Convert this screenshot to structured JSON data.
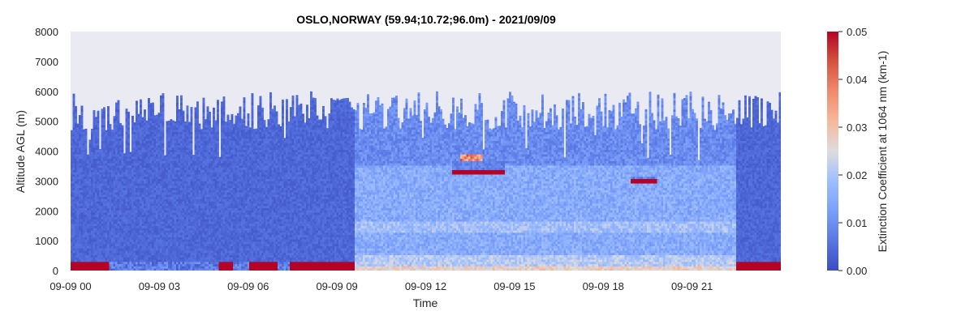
{
  "chart_data": {
    "type": "heatmap",
    "title": "OSLO,NORWAY (59.94;10.72;96.0m) - 2021/09/09",
    "xlabel": "Time",
    "ylabel": "Altitude AGL (m)",
    "xticks": [
      "09-09 00",
      "09-09 03",
      "09-09 06",
      "09-09 09",
      "09-09 12",
      "09-09 15",
      "09-09 18",
      "09-09 21"
    ],
    "xtick_hours": [
      0,
      3,
      6,
      9,
      12,
      15,
      18,
      21
    ],
    "xlim_hours": [
      0,
      24
    ],
    "yticks": [
      0,
      1000,
      2000,
      3000,
      4000,
      5000,
      6000,
      7000,
      8000
    ],
    "ylim": [
      0,
      8000
    ],
    "colorbar": {
      "label": "Extinction Coefficient at 1064 nm (km-1)",
      "ticks": [
        "0.00",
        "0.01",
        "0.02",
        "0.03",
        "0.04",
        "0.05"
      ],
      "tick_values": [
        0,
        0.01,
        0.02,
        0.03,
        0.04,
        0.05
      ],
      "range": [
        0,
        0.05
      ],
      "colormap": "coolwarm"
    },
    "features": [
      {
        "name": "signal top",
        "hours": [
          0,
          24
        ],
        "altitude_m": [
          4500,
          6000
        ]
      },
      {
        "name": "surface aerosol layer",
        "hours": [
          0,
          24
        ],
        "altitude_m": [
          0,
          300
        ],
        "value": 0.05
      },
      {
        "name": "elevated layer",
        "hours": [
          12.9,
          14.7
        ],
        "altitude_m": [
          3200,
          3650
        ],
        "value": 0.05
      },
      {
        "name": "elevated layer",
        "hours": [
          18.9,
          19.8
        ],
        "altitude_m": [
          2900,
          3100
        ],
        "value": 0.05
      },
      {
        "name": "daytime boundary layer",
        "hours": [
          9.6,
          22.5
        ],
        "altitude_m": [
          0,
          3500
        ],
        "value": 0.015
      }
    ]
  },
  "colors": {
    "axes_background": "#eaeaf2",
    "low": "#3b4cc0",
    "mid": "#dddddd",
    "high": "#b40426"
  }
}
